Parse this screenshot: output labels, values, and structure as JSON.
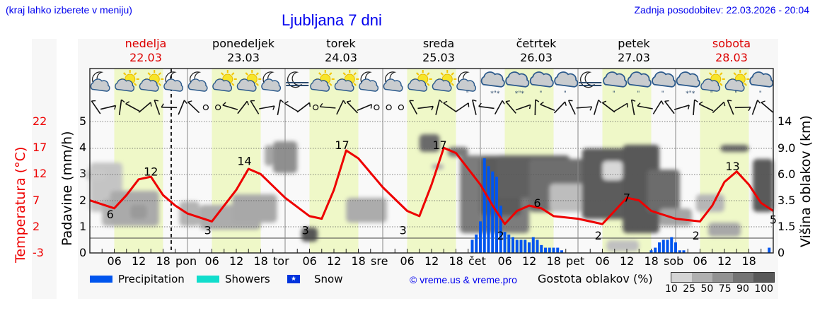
{
  "header": {
    "menu_hint": "(kraj lahko izberete v meniju)",
    "title": "Ljubljana 7 dni",
    "last_update": "Zadnja posodobitev: 22.03.2026 - 20:04"
  },
  "days": [
    {
      "name": "nedelja",
      "date": "22.03",
      "weekend": true
    },
    {
      "name": "ponedeljek",
      "date": "23.03",
      "weekend": false
    },
    {
      "name": "torek",
      "date": "24.03",
      "weekend": false
    },
    {
      "name": "sreda",
      "date": "25.03",
      "weekend": false
    },
    {
      "name": "četrtek",
      "date": "26.03",
      "weekend": false
    },
    {
      "name": "petek",
      "date": "27.03",
      "weekend": false
    },
    {
      "name": "sobota",
      "date": "28.03",
      "weekend": true
    }
  ],
  "axes": {
    "temperature_label": "Temperatura (°C)",
    "precip_label": "Padavine (mm/h)",
    "cloud_label": "Višina oblakov (km)",
    "temperature_ticks": [
      "22",
      "17",
      "12",
      "7",
      "2",
      "-3"
    ],
    "precip_ticks": [
      "5",
      "4",
      "3",
      "2",
      "1",
      "0"
    ],
    "cloud_ticks": [
      "14",
      "9.0",
      "6.0",
      "3.5",
      "1.5",
      "0"
    ],
    "x_ticks": [
      "06",
      "12",
      "18",
      "pon",
      "06",
      "12",
      "18",
      "tor",
      "06",
      "12",
      "18",
      "sre",
      "06",
      "12",
      "18",
      "čet",
      "06",
      "12",
      "18",
      "pet",
      "06",
      "12",
      "18",
      "sob",
      "06",
      "12",
      "18"
    ]
  },
  "legend": {
    "precipitation": "Precipitation",
    "showers": "Showers",
    "snow": "Snow",
    "copyright": "© vreme.us & vreme.pro",
    "cloud_density_label": "Gostota oblakov (%)",
    "cloud_density_scale": [
      "10",
      "25",
      "50",
      "75",
      "90",
      "100"
    ]
  },
  "colors": {
    "temperature": "#ee0000",
    "precipitation": "#0055ee",
    "showers": "#11ddcc",
    "snow": "#0033dd",
    "daylight": "#eff8c8",
    "title_blue": "#0000ee",
    "weekend_red": "#dd0000"
  },
  "chart_data": {
    "type": "line",
    "title": "Ljubljana 7 dni",
    "xlabel": "",
    "ylabel": "Temperatura (°C)",
    "ylim": [
      -3,
      22
    ],
    "x_unit": "hours from 22.03 00:00",
    "now_marker_hour": 20,
    "series": [
      {
        "name": "Temperature (°C)",
        "x": [
          0,
          6,
          9,
          12,
          15,
          18,
          21,
          24,
          30,
          36,
          39,
          42,
          48,
          54,
          57,
          60,
          63,
          66,
          72,
          78,
          81,
          84,
          87,
          90,
          96,
          99,
          102,
          105,
          108,
          111,
          114,
          120,
          126,
          129,
          132,
          135,
          138,
          144,
          150,
          153,
          156,
          159,
          162,
          165,
          168
        ],
        "values": [
          7,
          5.5,
          8,
          11,
          11.5,
          8,
          6,
          4.5,
          3,
          9,
          13,
          12,
          7.5,
          4,
          3.5,
          9,
          16.5,
          15,
          9.5,
          5,
          4,
          10,
          17,
          16,
          10,
          6,
          2.5,
          5,
          6,
          5.5,
          4,
          3.5,
          2.5,
          5,
          7.5,
          7,
          5,
          3.5,
          3,
          6,
          10.5,
          12.5,
          10,
          6.5,
          5
        ]
      },
      {
        "name": "Precipitation (mm/h)",
        "unit": "mm/h",
        "x": [
          94,
          95,
          96,
          97,
          98,
          99,
          100,
          101,
          102,
          103,
          104,
          105,
          106,
          107,
          108,
          109,
          110,
          111,
          112,
          113,
          114,
          115,
          116,
          117,
          118,
          119,
          138,
          139,
          140,
          141,
          142,
          143,
          144,
          145,
          146,
          167
        ],
        "values": [
          0.5,
          0.7,
          1.2,
          3.6,
          3.3,
          3.1,
          2.9,
          1.8,
          0.8,
          0.7,
          0.6,
          0.5,
          0.5,
          0.5,
          0.4,
          0.6,
          0.5,
          0.3,
          0.2,
          0.2,
          0.2,
          0.2,
          0.1,
          0,
          0,
          0,
          0.1,
          0.2,
          0.4,
          0.5,
          0.5,
          0.6,
          0.4,
          0.1,
          0.1,
          0.2
        ]
      }
    ],
    "temperature_annotations": [
      {
        "hour": 5,
        "value": 6
      },
      {
        "hour": 15,
        "value": 12
      },
      {
        "hour": 29,
        "value": 3
      },
      {
        "hour": 38,
        "value": 14
      },
      {
        "hour": 53,
        "value": 3
      },
      {
        "hour": 62,
        "value": 17
      },
      {
        "hour": 77,
        "value": 3
      },
      {
        "hour": 86,
        "value": 17
      },
      {
        "hour": 101,
        "value": 2
      },
      {
        "hour": 110,
        "value": 6
      },
      {
        "hour": 125,
        "value": 2
      },
      {
        "hour": 132,
        "value": 7
      },
      {
        "hour": 149,
        "value": 2
      },
      {
        "hour": 158,
        "value": 13
      },
      {
        "hour": 168,
        "value": 5
      }
    ],
    "secondary_axes": {
      "precip_ylim": [
        0,
        5
      ],
      "cloud_height_ticks_km": [
        0,
        1.5,
        3.5,
        6.0,
        9.0,
        14
      ]
    },
    "grid": true,
    "legend_position": "bottom"
  }
}
